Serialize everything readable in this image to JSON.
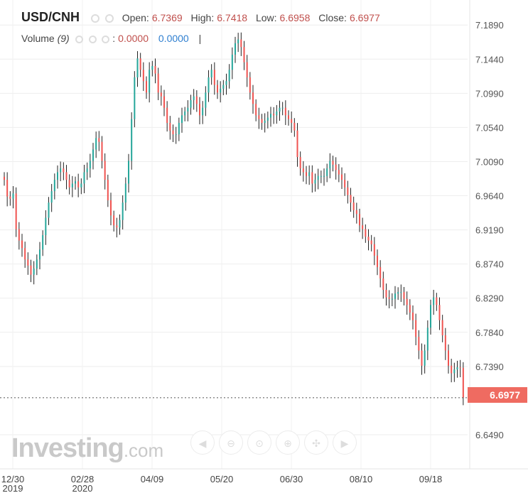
{
  "header": {
    "symbol": "USD/CNH",
    "open_label": "Open:",
    "open": "6.7369",
    "high_label": "High:",
    "high": "6.7418",
    "low_label": "Low:",
    "low": "6.6958",
    "close_label": "Close:",
    "close": "6.6977"
  },
  "volume_legend": {
    "label": "Volume",
    "period": "(9)",
    "value1": "0.0000",
    "value2": "0.0000",
    "separator": "|"
  },
  "price_tag": "6.6977",
  "brand": {
    "name": "Investing",
    "suffix": ".com"
  },
  "toolbar": [
    {
      "icon": "scroll-left-icon",
      "glyph": "◀"
    },
    {
      "icon": "zoom-out-icon",
      "glyph": "⊖"
    },
    {
      "icon": "zoom-icon",
      "glyph": "⊙"
    },
    {
      "icon": "zoom-in-icon",
      "glyph": "⊕"
    },
    {
      "icon": "reset-icon",
      "glyph": "✣"
    },
    {
      "icon": "scroll-right-icon",
      "glyph": "▶"
    }
  ],
  "colors": {
    "up": "#26a69a",
    "down": "#ef5350",
    "wick": "#222222",
    "price_tag": "#ef6b61",
    "last_price_line": "#555555"
  },
  "chart_data": {
    "type": "candlestick",
    "title": "USD/CNH",
    "ylim": [
      6.604,
      7.222
    ],
    "y_ticks": [
      "7.1890",
      "7.1440",
      "7.0990",
      "7.0540",
      "7.0090",
      "6.9640",
      "6.9190",
      "6.8740",
      "6.8290",
      "6.7840",
      "6.7390",
      "6.6977",
      "6.6490"
    ],
    "x_ticks": [
      {
        "label": "12/30",
        "sublabel": "2019"
      },
      {
        "label": "02/28",
        "sublabel": "2020"
      },
      {
        "label": "04/09",
        "sublabel": ""
      },
      {
        "label": "05/20",
        "sublabel": ""
      },
      {
        "label": "06/30",
        "sublabel": ""
      },
      {
        "label": "08/10",
        "sublabel": ""
      },
      {
        "label": "09/18",
        "sublabel": ""
      }
    ],
    "grid": true,
    "last_price": 6.6977,
    "closes": [
      6.985,
      6.963,
      6.96,
      6.967,
      6.92,
      6.905,
      6.895,
      6.88,
      6.872,
      6.86,
      6.868,
      6.88,
      6.893,
      6.912,
      6.935,
      6.955,
      6.97,
      6.985,
      6.995,
      7.0,
      6.995,
      6.985,
      6.975,
      6.98,
      6.983,
      6.975,
      6.98,
      6.995,
      7.0,
      7.01,
      7.025,
      7.04,
      7.035,
      7.01,
      6.985,
      6.958,
      6.938,
      6.925,
      6.922,
      6.932,
      6.955,
      6.98,
      7.01,
      7.065,
      7.12,
      7.145,
      7.13,
      7.115,
      7.1,
      7.13,
      7.135,
      7.125,
      7.1,
      7.095,
      7.08,
      7.06,
      7.05,
      7.045,
      7.045,
      7.06,
      7.07,
      7.075,
      7.08,
      7.09,
      7.095,
      7.085,
      7.07,
      7.08,
      7.1,
      7.12,
      7.13,
      7.11,
      7.1,
      7.105,
      7.11,
      7.115,
      7.13,
      7.15,
      7.165,
      7.17,
      7.16,
      7.14,
      7.12,
      7.1,
      7.085,
      7.07,
      7.065,
      7.06,
      7.063,
      7.067,
      7.072,
      7.07,
      7.075,
      7.08,
      7.08,
      7.07,
      7.065,
      7.06,
      7.05,
      7.015,
      7.0,
      6.995,
      6.99,
      6.995,
      6.98,
      6.985,
      6.99,
      6.99,
      6.99,
      7.0,
      7.01,
      7.005,
      6.998,
      6.992,
      6.985,
      6.975,
      6.965,
      6.955,
      6.945,
      6.94,
      6.925,
      6.92,
      6.91,
      6.905,
      6.9,
      6.885,
      6.87,
      6.855,
      6.84,
      6.83,
      6.828,
      6.828,
      6.835,
      6.837,
      6.837,
      6.828,
      6.82,
      6.81,
      6.8,
      6.778,
      6.76,
      6.74,
      6.76,
      6.79,
      6.82,
      6.83,
      6.82,
      6.8,
      6.78,
      6.76,
      6.74,
      6.73,
      6.735,
      6.738,
      6.7371,
      6.6977
    ]
  }
}
